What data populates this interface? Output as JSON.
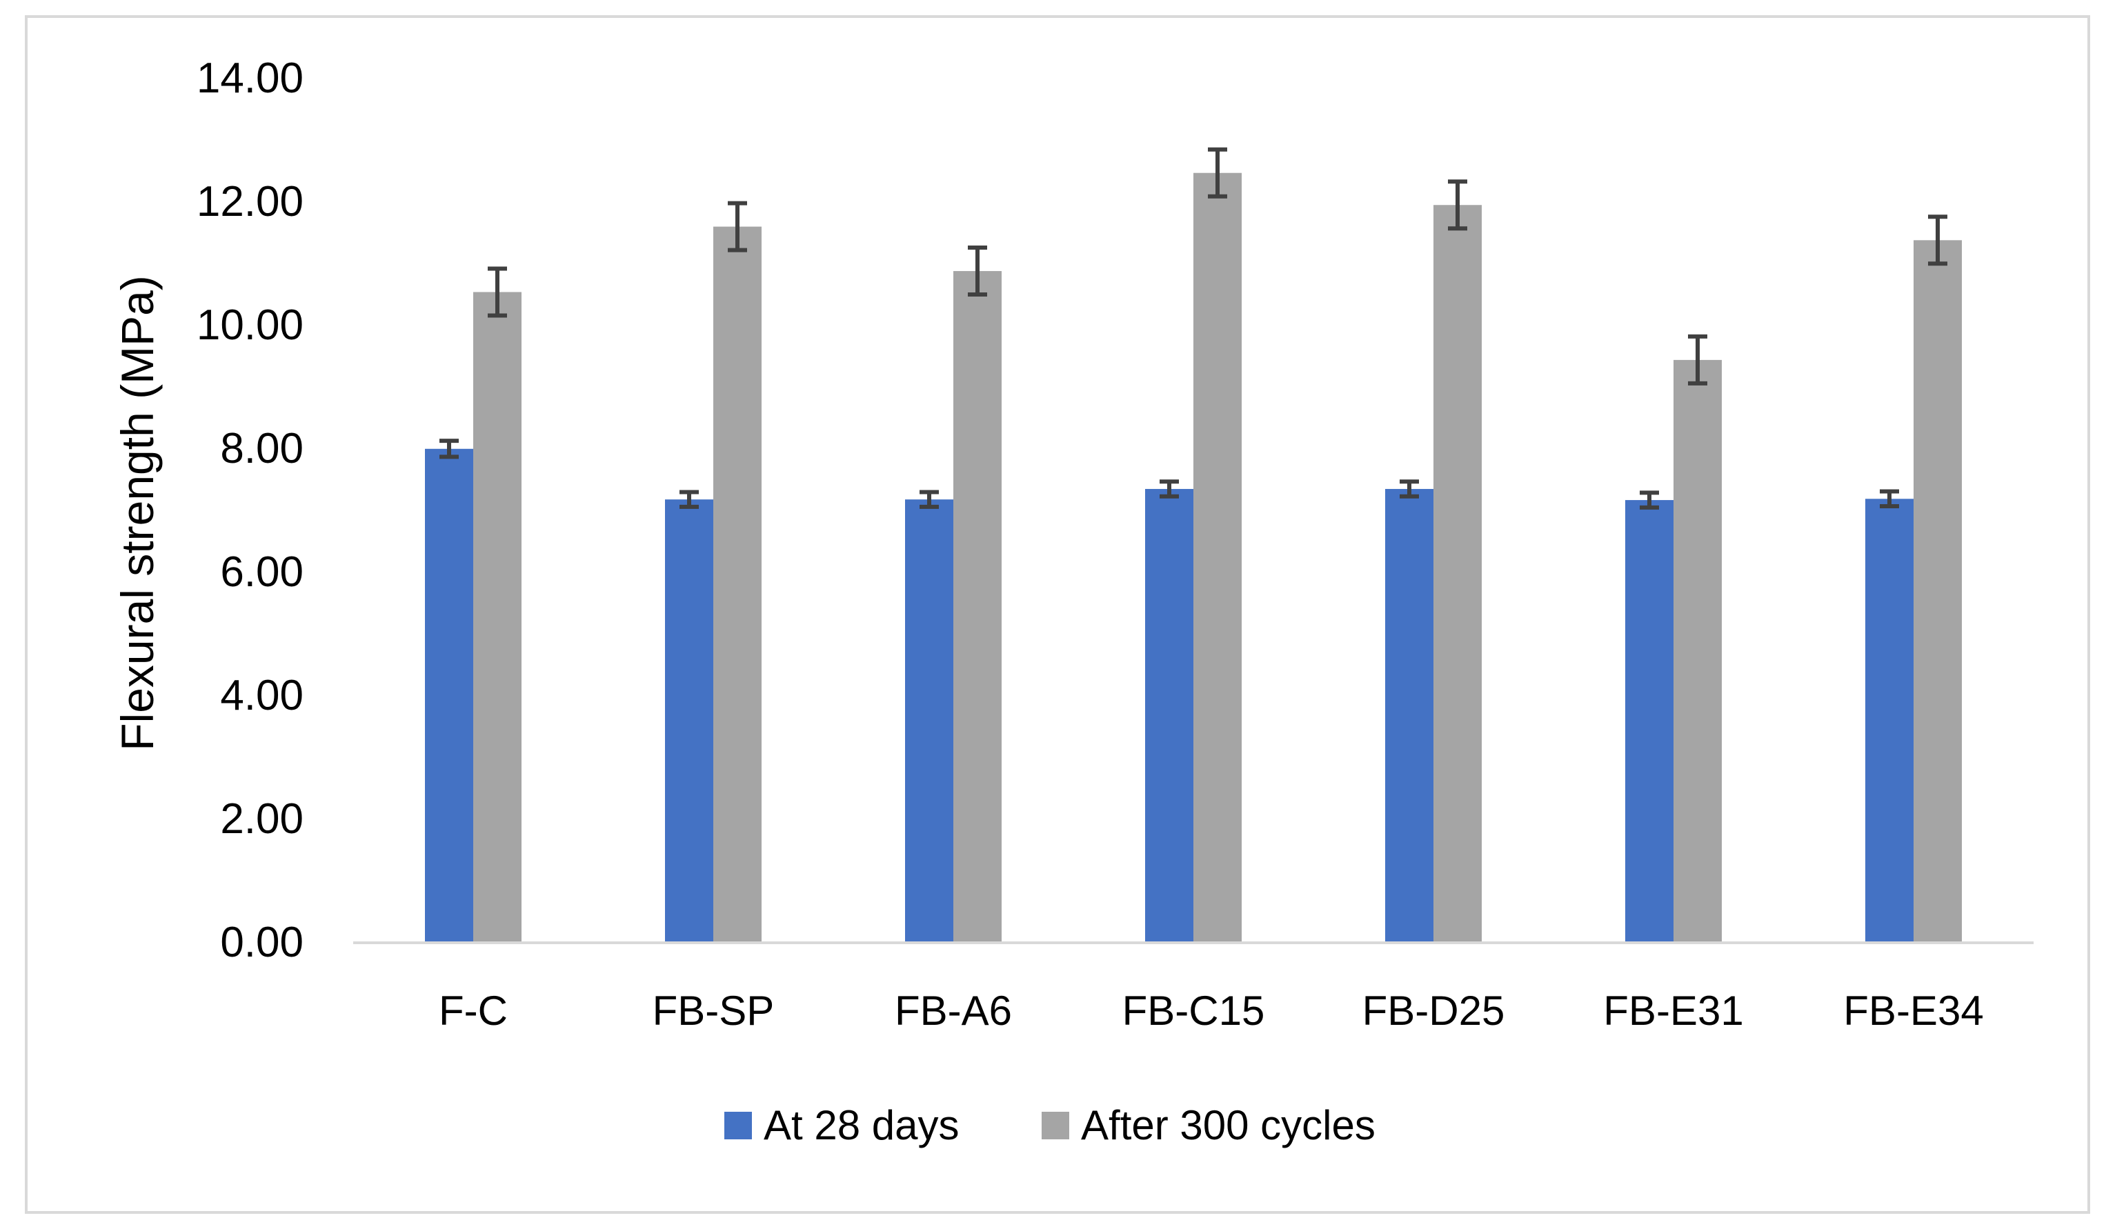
{
  "chart_data": {
    "type": "bar",
    "title": "",
    "xlabel": "",
    "ylabel": "Flexural strength (MPa)",
    "ylim": [
      0,
      14
    ],
    "y_ticks": [
      "0.00",
      "2.00",
      "4.00",
      "6.00",
      "8.00",
      "10.00",
      "12.00",
      "14.00"
    ],
    "grid": false,
    "legend_position": "bottom",
    "categories": [
      "F-C",
      "FB-SP",
      "FB-A6",
      "FB-C15",
      "FB-D25",
      "FB-E31",
      "FB-E34"
    ],
    "series": [
      {
        "name": "At 28 days",
        "color": "#4472c4",
        "values": [
          7.98,
          7.16,
          7.16,
          7.33,
          7.33,
          7.15,
          7.17
        ],
        "errors": [
          0.13,
          0.12,
          0.12,
          0.12,
          0.12,
          0.12,
          0.12
        ]
      },
      {
        "name": "After 300 cycles",
        "color": "#a5a5a5",
        "values": [
          10.52,
          11.58,
          10.86,
          12.45,
          11.93,
          9.42,
          11.36
        ],
        "errors": [
          0.38,
          0.38,
          0.38,
          0.38,
          0.38,
          0.38,
          0.38
        ]
      }
    ],
    "error_bar_color": "#404040",
    "axis_color": "#d9d9d9"
  }
}
